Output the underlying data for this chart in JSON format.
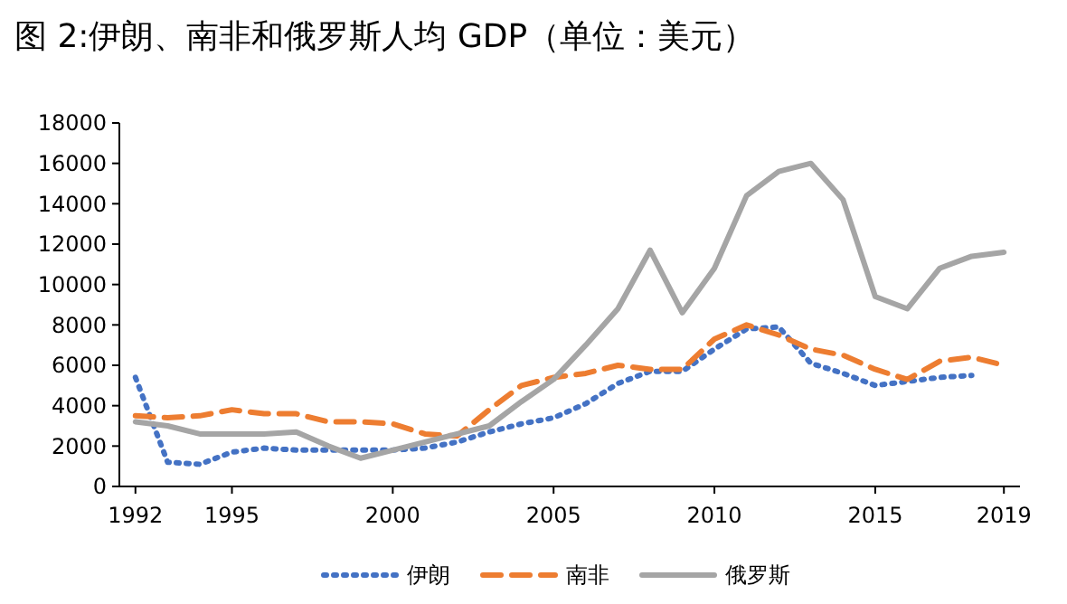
{
  "chart_data": {
    "type": "line",
    "title": "图 2:伊朗、南非和俄罗斯人均 GDP（单位：美元）",
    "x": [
      1992,
      1993,
      1994,
      1995,
      1996,
      1997,
      1998,
      1999,
      2000,
      2001,
      2002,
      2003,
      2004,
      2005,
      2006,
      2007,
      2008,
      2009,
      2010,
      2011,
      2012,
      2013,
      2014,
      2015,
      2016,
      2017,
      2018,
      2019
    ],
    "xlim": [
      1991.5,
      2019.5
    ],
    "xticks": [
      1992,
      1995,
      2000,
      2005,
      2010,
      2015,
      2019
    ],
    "ylim": [
      0,
      18000
    ],
    "yticks": [
      0,
      2000,
      4000,
      6000,
      8000,
      10000,
      12000,
      14000,
      16000,
      18000
    ],
    "grid": false,
    "legend": "bottom",
    "marker": "none",
    "series": [
      {
        "name": "伊朗",
        "color": "#4472c4",
        "line_style": "dotted",
        "values": [
          5400,
          1200,
          1100,
          1700,
          1900,
          1800,
          1800,
          1800,
          1800,
          1900,
          2200,
          2700,
          3100,
          3400,
          4100,
          5100,
          5700,
          5700,
          6800,
          7800,
          7900,
          6100,
          5600,
          5000,
          5200,
          5400,
          5500,
          null
        ]
      },
      {
        "name": "南非",
        "color": "#ed7d31",
        "line_style": "dashed",
        "values": [
          3500,
          3400,
          3500,
          3800,
          3600,
          3600,
          3200,
          3200,
          3100,
          2600,
          2500,
          3800,
          5000,
          5400,
          5600,
          6000,
          5800,
          5800,
          7300,
          8000,
          7500,
          6800,
          6500,
          5800,
          5300,
          6200,
          6400,
          6000
        ]
      },
      {
        "name": "俄罗斯",
        "color": "#a5a5a5",
        "line_style": "solid",
        "values": [
          3200,
          3000,
          2600,
          2600,
          2600,
          2700,
          2000,
          1400,
          1800,
          2200,
          2600,
          3000,
          4200,
          5300,
          7000,
          8800,
          11700,
          8600,
          10800,
          14400,
          15600,
          16000,
          14200,
          9400,
          8800,
          10800,
          11400,
          11600
        ]
      }
    ]
  }
}
